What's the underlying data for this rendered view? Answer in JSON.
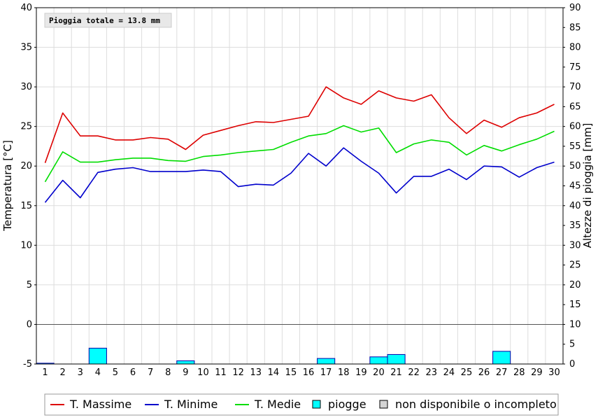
{
  "chart_data": {
    "type": "line",
    "annotation": "Pioggia totale = 13.8 mm",
    "x": [
      1,
      2,
      3,
      4,
      5,
      6,
      7,
      8,
      9,
      10,
      11,
      12,
      13,
      14,
      15,
      16,
      17,
      18,
      19,
      20,
      21,
      22,
      23,
      24,
      25,
      26,
      27,
      28,
      29,
      30
    ],
    "ylabel_left": "Temperatura [°C]",
    "ylabel_right": "Altezze di pioggia [mm]",
    "ylim_left": [
      -5,
      40
    ],
    "ylim_right": [
      0,
      90
    ],
    "yticks_left": [
      -5,
      0,
      5,
      10,
      15,
      20,
      25,
      30,
      35,
      40
    ],
    "yticks_right": [
      0,
      5,
      10,
      15,
      20,
      25,
      30,
      35,
      40,
      45,
      50,
      55,
      60,
      65,
      70,
      75,
      80,
      85,
      90
    ],
    "grid": true,
    "legend_position": "bottom",
    "series": [
      {
        "name": "T. Massime",
        "color": "#dd0000",
        "axis": "left",
        "values": [
          20.4,
          26.7,
          23.8,
          23.8,
          23.3,
          23.3,
          23.6,
          23.4,
          22.1,
          23.9,
          24.5,
          25.1,
          25.6,
          25.5,
          25.9,
          26.3,
          30.0,
          28.6,
          27.8,
          29.5,
          28.6,
          28.2,
          29.0,
          26.1,
          24.1,
          25.8,
          24.9,
          26.1,
          26.7,
          27.8
        ]
      },
      {
        "name": "T. Minime",
        "color": "#0000cc",
        "axis": "left",
        "values": [
          15.4,
          18.2,
          16.0,
          19.2,
          19.6,
          19.8,
          19.3,
          19.3,
          19.3,
          19.5,
          19.3,
          17.4,
          17.7,
          17.6,
          19.1,
          21.6,
          20.0,
          22.3,
          20.6,
          19.1,
          16.6,
          18.7,
          18.7,
          19.6,
          18.3,
          20.0,
          19.9,
          18.6,
          19.8,
          20.5
        ]
      },
      {
        "name": "T. Medie",
        "color": "#00dd00",
        "axis": "left",
        "values": [
          18.0,
          21.8,
          20.5,
          20.5,
          20.8,
          21.0,
          21.0,
          20.7,
          20.6,
          21.2,
          21.4,
          21.7,
          21.9,
          22.1,
          23.0,
          23.8,
          24.1,
          25.1,
          24.3,
          24.8,
          21.7,
          22.8,
          23.3,
          23.0,
          21.4,
          22.6,
          21.9,
          22.7,
          23.4,
          24.4
        ]
      }
    ],
    "bars": {
      "name": "piogge",
      "color": "#00ffff",
      "axis": "right",
      "values": [
        0.2,
        0,
        0,
        4.0,
        0,
        0,
        0,
        0,
        0.8,
        0,
        0,
        0,
        0,
        0,
        0,
        0,
        1.4,
        0,
        0,
        1.8,
        2.4,
        0,
        0,
        0,
        0,
        0,
        3.2,
        0,
        0,
        0
      ]
    },
    "legend": [
      {
        "label": "T. Massime",
        "kind": "line",
        "color": "#dd0000"
      },
      {
        "label": "T. Minime",
        "kind": "line",
        "color": "#0000cc"
      },
      {
        "label": "T. Medie",
        "kind": "line",
        "color": "#00dd00"
      },
      {
        "label": "piogge",
        "kind": "box",
        "color": "#00ffff"
      },
      {
        "label": "non disponibile o incompleto",
        "kind": "box",
        "color": "#d4d4d4"
      }
    ]
  }
}
